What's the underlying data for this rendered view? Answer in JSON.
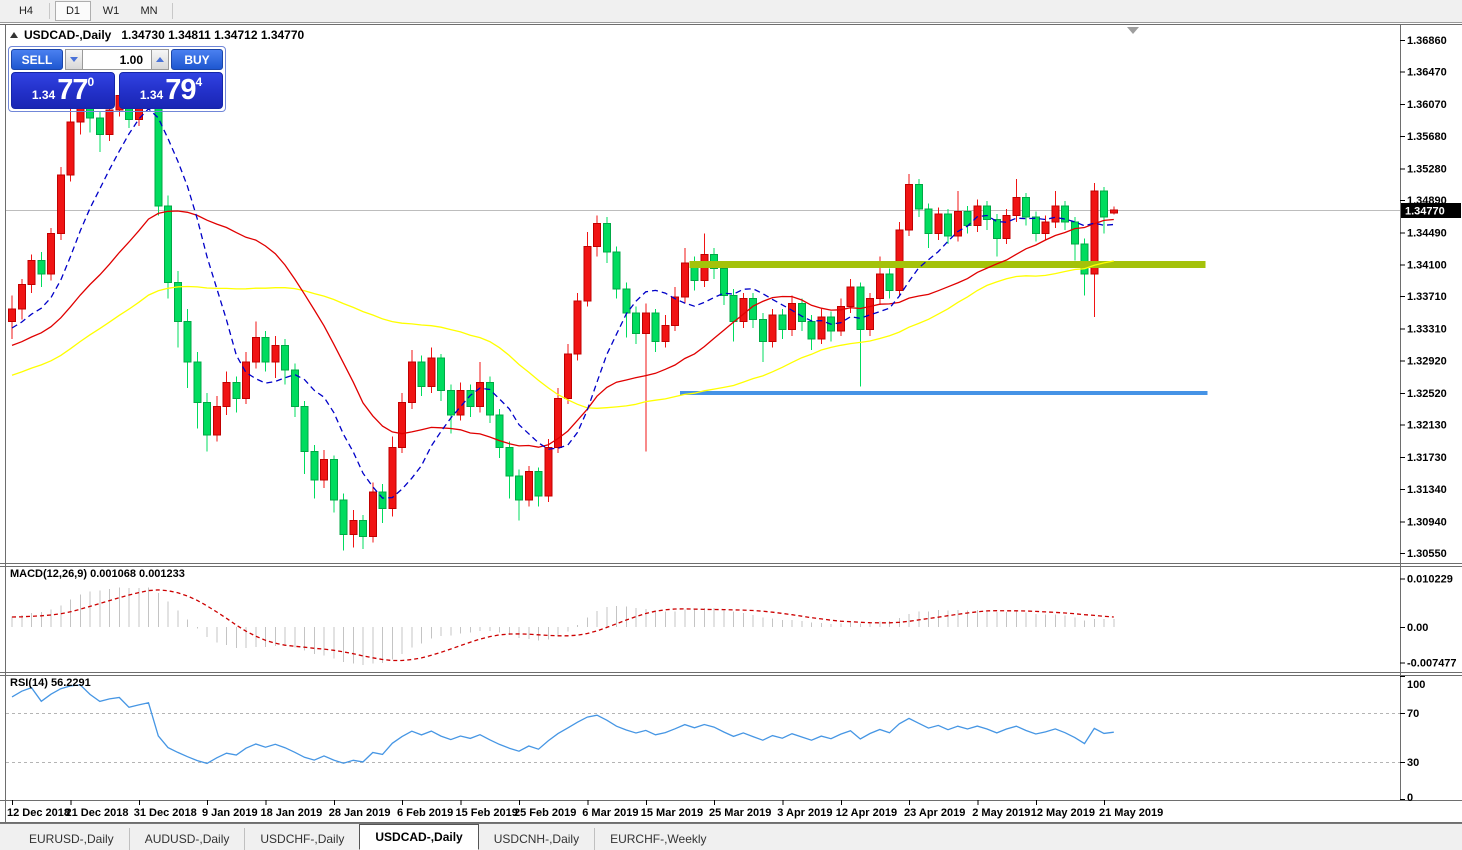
{
  "toolbar": {
    "buttons": [
      {
        "id": "h4",
        "label": "H4",
        "active": false
      },
      {
        "id": "d1",
        "label": "D1",
        "active": true
      },
      {
        "id": "w1",
        "label": "W1",
        "active": false
      },
      {
        "id": "mn",
        "label": "MN",
        "active": false
      }
    ]
  },
  "chart": {
    "title_symbol": "USDCAD-,Daily",
    "quote_text": "1.34730 1.34811 1.34712 1.34770",
    "trade_panel": {
      "sell_label": "SELL",
      "buy_label": "BUY",
      "volume": "1.00",
      "sell_price": {
        "small": "1.34",
        "big": "77",
        "sup": "0"
      },
      "buy_price": {
        "small": "1.34",
        "big": "79",
        "sup": "4"
      }
    }
  },
  "chart_data": {
    "type": "candlestick",
    "symbol": "USDCAD-",
    "timeframe": "Daily",
    "title": "USDCAD-,Daily",
    "quote": {
      "open": 1.3473,
      "high": 1.34811,
      "low": 1.34712,
      "close": 1.3477
    },
    "price_axis": {
      "ticks": [
        1.3686,
        1.3647,
        1.3607,
        1.3568,
        1.3528,
        1.3489,
        1.3449,
        1.341,
        1.3371,
        1.3331,
        1.3292,
        1.3252,
        1.3213,
        1.3173,
        1.3134,
        1.3094,
        1.3055
      ],
      "current": 1.3477,
      "current_label": "1.34770"
    },
    "candles": [
      [
        1.334,
        1.3372,
        1.3318,
        1.3355
      ],
      [
        1.3355,
        1.3392,
        1.3342,
        1.3385
      ],
      [
        1.3385,
        1.3422,
        1.3375,
        1.3415
      ],
      [
        1.3415,
        1.3425,
        1.3382,
        1.3398
      ],
      [
        1.3398,
        1.3455,
        1.339,
        1.3448
      ],
      [
        1.3448,
        1.353,
        1.344,
        1.352
      ],
      [
        1.352,
        1.3625,
        1.3512,
        1.3585
      ],
      [
        1.3585,
        1.3632,
        1.357,
        1.3615
      ],
      [
        1.3615,
        1.3622,
        1.3572,
        1.359
      ],
      [
        1.359,
        1.3598,
        1.3548,
        1.357
      ],
      [
        1.357,
        1.3608,
        1.3562,
        1.36
      ],
      [
        1.36,
        1.363,
        1.3592,
        1.3618
      ],
      [
        1.3618,
        1.3625,
        1.3578,
        1.3588
      ],
      [
        1.3588,
        1.362,
        1.358,
        1.3612
      ],
      [
        1.3612,
        1.3642,
        1.3602,
        1.3635
      ],
      [
        1.3635,
        1.364,
        1.347,
        1.3482
      ],
      [
        1.3482,
        1.3495,
        1.3368,
        1.3388
      ],
      [
        1.3388,
        1.3402,
        1.3308,
        1.334
      ],
      [
        1.334,
        1.3355,
        1.3258,
        1.329
      ],
      [
        1.329,
        1.3302,
        1.3208,
        1.324
      ],
      [
        1.324,
        1.3252,
        1.318,
        1.32
      ],
      [
        1.32,
        1.3248,
        1.3192,
        1.3235
      ],
      [
        1.3235,
        1.3278,
        1.3225,
        1.3265
      ],
      [
        1.3265,
        1.3272,
        1.3228,
        1.3245
      ],
      [
        1.3245,
        1.3302,
        1.3238,
        1.329
      ],
      [
        1.329,
        1.334,
        1.3282,
        1.332
      ],
      [
        1.332,
        1.3328,
        1.3278,
        1.329
      ],
      [
        1.329,
        1.3322,
        1.327,
        1.331
      ],
      [
        1.331,
        1.3318,
        1.3262,
        1.328
      ],
      [
        1.328,
        1.3288,
        1.3222,
        1.3235
      ],
      [
        1.3235,
        1.3242,
        1.3152,
        1.318
      ],
      [
        1.318,
        1.3188,
        1.3122,
        1.3145
      ],
      [
        1.3145,
        1.3182,
        1.3135,
        1.317
      ],
      [
        1.317,
        1.3175,
        1.3105,
        1.312
      ],
      [
        1.312,
        1.3128,
        1.3058,
        1.3078
      ],
      [
        1.3078,
        1.3108,
        1.3062,
        1.3095
      ],
      [
        1.3095,
        1.3102,
        1.306,
        1.3075
      ],
      [
        1.3075,
        1.3142,
        1.3068,
        1.313
      ],
      [
        1.313,
        1.314,
        1.3092,
        1.311
      ],
      [
        1.311,
        1.3198,
        1.31,
        1.3185
      ],
      [
        1.3185,
        1.3252,
        1.3178,
        1.324
      ],
      [
        1.324,
        1.3305,
        1.3232,
        1.329
      ],
      [
        1.329,
        1.3298,
        1.3248,
        1.326
      ],
      [
        1.326,
        1.3308,
        1.3252,
        1.3295
      ],
      [
        1.3295,
        1.33,
        1.3242,
        1.3255
      ],
      [
        1.3255,
        1.3262,
        1.3202,
        1.3225
      ],
      [
        1.3225,
        1.3265,
        1.3218,
        1.3255
      ],
      [
        1.3255,
        1.3262,
        1.3222,
        1.3235
      ],
      [
        1.3235,
        1.329,
        1.3228,
        1.3265
      ],
      [
        1.3265,
        1.3272,
        1.3215,
        1.3225
      ],
      [
        1.3225,
        1.3232,
        1.3172,
        1.3185
      ],
      [
        1.3185,
        1.3192,
        1.3122,
        1.315
      ],
      [
        1.315,
        1.3158,
        1.3095,
        1.312
      ],
      [
        1.312,
        1.3162,
        1.3112,
        1.3155
      ],
      [
        1.3155,
        1.316,
        1.3112,
        1.3125
      ],
      [
        1.3125,
        1.3195,
        1.3118,
        1.3185
      ],
      [
        1.3185,
        1.3258,
        1.3178,
        1.3245
      ],
      [
        1.3245,
        1.3312,
        1.3238,
        1.33
      ],
      [
        1.33,
        1.3375,
        1.3292,
        1.3365
      ],
      [
        1.3365,
        1.345,
        1.3358,
        1.3432
      ],
      [
        1.3432,
        1.347,
        1.342,
        1.346
      ],
      [
        1.346,
        1.3468,
        1.3412,
        1.3425
      ],
      [
        1.3425,
        1.3432,
        1.3368,
        1.338
      ],
      [
        1.338,
        1.3388,
        1.332,
        1.335
      ],
      [
        1.335,
        1.3358,
        1.3312,
        1.3325
      ],
      [
        1.3325,
        1.3362,
        1.318,
        1.335
      ],
      [
        1.335,
        1.3355,
        1.3302,
        1.3315
      ],
      [
        1.3315,
        1.3348,
        1.3308,
        1.3335
      ],
      [
        1.3335,
        1.3382,
        1.3328,
        1.337
      ],
      [
        1.337,
        1.343,
        1.3362,
        1.3412
      ],
      [
        1.3412,
        1.342,
        1.3378,
        1.339
      ],
      [
        1.339,
        1.3448,
        1.3382,
        1.3422
      ],
      [
        1.3422,
        1.343,
        1.3392,
        1.3405
      ],
      [
        1.3405,
        1.3412,
        1.336,
        1.3372
      ],
      [
        1.3372,
        1.338,
        1.3315,
        1.334
      ],
      [
        1.334,
        1.3375,
        1.3332,
        1.3368
      ],
      [
        1.3368,
        1.3375,
        1.3332,
        1.3342
      ],
      [
        1.3342,
        1.335,
        1.329,
        1.3315
      ],
      [
        1.3315,
        1.3355,
        1.3308,
        1.3348
      ],
      [
        1.3348,
        1.3355,
        1.3318,
        1.333
      ],
      [
        1.333,
        1.3372,
        1.3322,
        1.3362
      ],
      [
        1.3362,
        1.3368,
        1.3328,
        1.334
      ],
      [
        1.334,
        1.3348,
        1.3305,
        1.3318
      ],
      [
        1.3318,
        1.3355,
        1.3312,
        1.3345
      ],
      [
        1.3345,
        1.3352,
        1.3315,
        1.3328
      ],
      [
        1.3328,
        1.3368,
        1.3322,
        1.3358
      ],
      [
        1.3358,
        1.3392,
        1.335,
        1.3382
      ],
      [
        1.3382,
        1.3388,
        1.326,
        1.333
      ],
      [
        1.333,
        1.3375,
        1.3322,
        1.3368
      ],
      [
        1.3368,
        1.342,
        1.336,
        1.3398
      ],
      [
        1.3398,
        1.3405,
        1.3368,
        1.3378
      ],
      [
        1.3378,
        1.3462,
        1.3372,
        1.3452
      ],
      [
        1.3452,
        1.3521,
        1.3445,
        1.3508
      ],
      [
        1.3508,
        1.3515,
        1.3468,
        1.3478
      ],
      [
        1.3478,
        1.3485,
        1.343,
        1.3448
      ],
      [
        1.3448,
        1.348,
        1.344,
        1.3472
      ],
      [
        1.3472,
        1.3478,
        1.3435,
        1.3445
      ],
      [
        1.3445,
        1.35,
        1.3438,
        1.3475
      ],
      [
        1.3475,
        1.3482,
        1.3448,
        1.3458
      ],
      [
        1.3458,
        1.349,
        1.345,
        1.3482
      ],
      [
        1.3482,
        1.3488,
        1.3452,
        1.3465
      ],
      [
        1.3465,
        1.3472,
        1.342,
        1.3442
      ],
      [
        1.3442,
        1.3478,
        1.3435,
        1.347
      ],
      [
        1.347,
        1.3515,
        1.3462,
        1.3492
      ],
      [
        1.3492,
        1.3498,
        1.3458,
        1.3468
      ],
      [
        1.3468,
        1.3475,
        1.3438,
        1.3448
      ],
      [
        1.3448,
        1.347,
        1.344,
        1.3462
      ],
      [
        1.3462,
        1.35,
        1.3455,
        1.3482
      ],
      [
        1.3482,
        1.3488,
        1.3452,
        1.3462
      ],
      [
        1.3462,
        1.3468,
        1.3415,
        1.3435
      ],
      [
        1.3435,
        1.3442,
        1.3372,
        1.3398
      ],
      [
        1.3398,
        1.351,
        1.3345,
        1.35
      ],
      [
        1.35,
        1.3505,
        1.3448,
        1.3468
      ],
      [
        1.3473,
        1.34811,
        1.34712,
        1.3477
      ]
    ],
    "date_ticks": [
      {
        "label": "12 Dec 2018",
        "i": 0
      },
      {
        "label": "21 Dec 2018",
        "i": 6
      },
      {
        "label": "31 Dec 2018",
        "i": 13
      },
      {
        "label": "9 Jan 2019",
        "i": 20
      },
      {
        "label": "18 Jan 2019",
        "i": 26
      },
      {
        "label": "28 Jan 2019",
        "i": 33
      },
      {
        "label": "6 Feb 2019",
        "i": 40
      },
      {
        "label": "15 Feb 2019",
        "i": 46
      },
      {
        "label": "25 Feb 2019",
        "i": 52
      },
      {
        "label": "6 Mar 2019",
        "i": 59
      },
      {
        "label": "15 Mar 2019",
        "i": 65
      },
      {
        "label": "25 Mar 2019",
        "i": 72
      },
      {
        "label": "3 Apr 2019",
        "i": 79
      },
      {
        "label": "12 Apr 2019",
        "i": 85
      },
      {
        "label": "23 Apr 2019",
        "i": 92
      },
      {
        "label": "2 May 2019",
        "i": 99
      },
      {
        "label": "12 May 2019",
        "i": 105
      },
      {
        "label": "21 May 2019",
        "i": 112
      }
    ],
    "moving_averages": [
      {
        "name": "ma-slow",
        "period": 45,
        "color": "#FFFF00",
        "dash": false
      },
      {
        "name": "ma-mid",
        "period": 22,
        "color": "#E00000",
        "dash": false
      },
      {
        "name": "ma-fast",
        "period": 9,
        "color": "#0000C8",
        "dash": true
      }
    ],
    "hlines": [
      {
        "name": "resistance-line",
        "price": 1.341,
        "from_i": 69.5,
        "to_i": 122.4,
        "color": "#A4C20A",
        "thickness": 7
      },
      {
        "name": "support-line",
        "price": 1.3252,
        "from_i": 68.5,
        "to_i": 122.6,
        "color": "#4593E6",
        "thickness": 4
      }
    ],
    "indicators": {
      "macd": {
        "display_label": "MACD(12,26,9) 0.001068 0.001233",
        "fast": 12,
        "slow": 26,
        "signal": 9,
        "axis_labels": [
          {
            "value": 0.010229,
            "label": "0.010229"
          },
          {
            "value": 0,
            "label": "0.00"
          },
          {
            "value": -0.007477,
            "label": "-0.007477"
          }
        ],
        "histogram_color": "#C4C4C4",
        "signal_color": "#CC0000"
      },
      "rsi": {
        "display_label": "RSI(14) 56.2291",
        "period": 14,
        "levels": [
          70,
          30
        ],
        "axis_labels": [
          {
            "value": 100,
            "label": "100"
          },
          {
            "value": 70,
            "label": "70"
          },
          {
            "value": 30,
            "label": "30"
          },
          {
            "value": 0,
            "label": "0"
          }
        ],
        "color": "#4696E4"
      }
    },
    "colors": {
      "bull": "#F01414",
      "bull_border": "#C00000",
      "bear": "#00DC5F",
      "bear_border": "#00A845",
      "price_line": "#BDBDBD",
      "current_tag_bg": "#000000",
      "current_tag_text": "#FFFFFF"
    }
  },
  "tabs": [
    {
      "label": "EURUSD-,Daily",
      "active": false
    },
    {
      "label": "AUDUSD-,Daily",
      "active": false
    },
    {
      "label": "USDCHF-,Daily",
      "active": false
    },
    {
      "label": "USDCAD-,Daily",
      "active": true
    },
    {
      "label": "USDCNH-,Daily",
      "active": false
    },
    {
      "label": "EURCHF-,Weekly",
      "active": false
    }
  ]
}
